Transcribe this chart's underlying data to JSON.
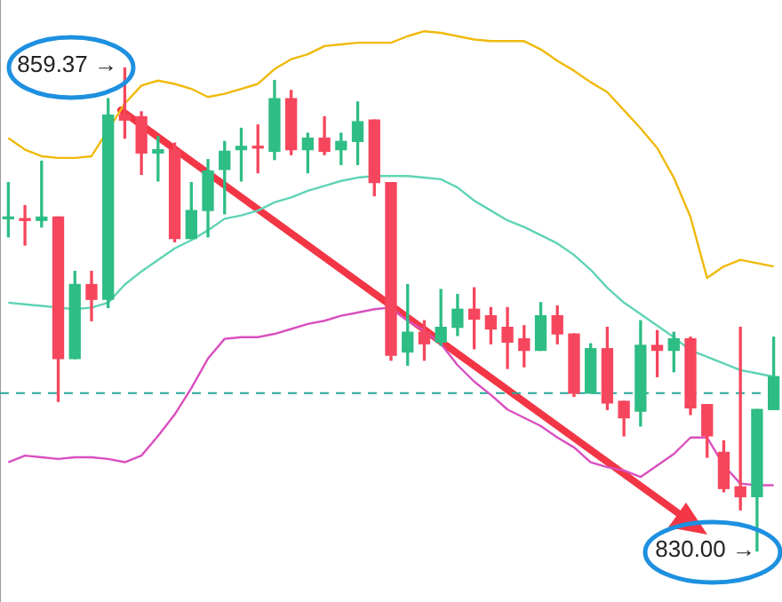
{
  "chart_data": {
    "type": "candlestick",
    "categories": [
      null,
      null,
      null,
      null,
      null,
      null,
      null,
      null,
      null,
      null,
      null,
      null,
      null,
      null,
      null,
      null,
      null,
      null,
      null,
      null,
      null,
      null,
      null,
      null,
      null,
      null,
      null,
      null,
      null,
      null,
      null,
      null,
      null,
      null,
      null,
      null,
      null,
      null,
      null,
      null,
      null,
      null,
      null,
      null,
      null,
      null,
      null
    ],
    "ohlc": [
      [
        850.2,
        852.4,
        849.1,
        850.3
      ],
      [
        850.2,
        851.0,
        848.6,
        850.1
      ],
      [
        850.1,
        853.7,
        849.7,
        850.3
      ],
      [
        850.3,
        850.3,
        839.1,
        841.7
      ],
      [
        841.7,
        847.0,
        841.7,
        846.2
      ],
      [
        846.2,
        847.0,
        844.0,
        845.3
      ],
      [
        845.3,
        857.5,
        844.8,
        856.5
      ],
      [
        856.5,
        859.37,
        855.1,
        856.2
      ],
      [
        856.4,
        856.7,
        852.9,
        854.2
      ],
      [
        854.2,
        855.2,
        852.5,
        854.4
      ],
      [
        854.4,
        854.8,
        848.8,
        849.0
      ],
      [
        849.0,
        852.4,
        849.0,
        850.7
      ],
      [
        850.7,
        853.8,
        849.1,
        853.1
      ],
      [
        853.2,
        854.9,
        850.5,
        854.3
      ],
      [
        854.4,
        855.7,
        852.5,
        854.6
      ],
      [
        854.6,
        855.9,
        853.0,
        854.5
      ],
      [
        854.3,
        858.6,
        853.8,
        857.5
      ],
      [
        857.5,
        858.0,
        854.1,
        854.4
      ],
      [
        854.4,
        855.4,
        853.0,
        855.1
      ],
      [
        855.1,
        856.4,
        854.1,
        854.3
      ],
      [
        854.4,
        855.4,
        853.5,
        854.9
      ],
      [
        854.9,
        857.3,
        853.5,
        856.1
      ],
      [
        856.2,
        856.2,
        851.6,
        852.4
      ],
      [
        852.4,
        852.4,
        841.6,
        841.9
      ],
      [
        842.1,
        846.2,
        841.3,
        843.3
      ],
      [
        843.3,
        844.0,
        841.6,
        842.6
      ],
      [
        842.7,
        845.9,
        842.5,
        843.6
      ],
      [
        843.6,
        845.6,
        843.1,
        844.7
      ],
      [
        844.7,
        846.0,
        842.3,
        844.1
      ],
      [
        844.3,
        844.8,
        842.6,
        843.5
      ],
      [
        843.6,
        844.8,
        841.1,
        842.7
      ],
      [
        842.9,
        843.7,
        841.2,
        842.2
      ],
      [
        842.2,
        845.1,
        842.2,
        844.3
      ],
      [
        844.3,
        844.9,
        842.6,
        843.2
      ],
      [
        843.2,
        843.2,
        839.4,
        839.6
      ],
      [
        839.6,
        842.6,
        839.6,
        842.3
      ],
      [
        842.3,
        843.6,
        838.6,
        839.0
      ],
      [
        839.1,
        839.1,
        837.0,
        838.1
      ],
      [
        838.5,
        844.0,
        837.6,
        842.5
      ],
      [
        842.5,
        843.4,
        840.6,
        842.2
      ],
      [
        842.2,
        843.3,
        840.9,
        842.9
      ],
      [
        842.9,
        843.0,
        838.3,
        838.7
      ],
      [
        838.9,
        838.9,
        835.7,
        837.0
      ],
      [
        836.0,
        836.7,
        833.6,
        833.8
      ],
      [
        833.9,
        843.6,
        832.5,
        833.3
      ],
      [
        833.3,
        838.6,
        830.0,
        838.6
      ],
      [
        838.6,
        843.0,
        838.6,
        840.6
      ]
    ],
    "colors": [
      "#2ebd85",
      "#f6465d",
      "#2ebd85",
      "#f6465d",
      "#2ebd85",
      "#f6465d",
      "#2ebd85",
      "#f6465d",
      "#f6465d",
      "#2ebd85",
      "#f6465d",
      "#2ebd85",
      "#2ebd85",
      "#2ebd85",
      "#2ebd85",
      "#f6465d",
      "#2ebd85",
      "#f6465d",
      "#2ebd85",
      "#f6465d",
      "#2ebd85",
      "#2ebd85",
      "#f6465d",
      "#f6465d",
      "#2ebd85",
      "#f6465d",
      "#2ebd85",
      "#2ebd85",
      "#f6465d",
      "#f6465d",
      "#f6465d",
      "#f6465d",
      "#2ebd85",
      "#f6465d",
      "#f6465d",
      "#2ebd85",
      "#f6465d",
      "#f6465d",
      "#2ebd85",
      "#f6465d",
      "#2ebd85",
      "#f6465d",
      "#f6465d",
      "#f6465d",
      "#f6465d",
      "#2ebd85",
      "#2ebd85"
    ],
    "series": [
      {
        "type": "line",
        "color": "#f0b90b",
        "values": [
          855.1,
          854.4,
          854.0,
          853.9,
          853.9,
          854.0,
          null,
          857.2,
          858.3,
          858.6,
          858.4,
          858.1,
          857.6,
          857.8,
          858.1,
          858.4,
          859.3,
          859.9,
          860.2,
          860.7,
          860.8,
          860.9,
          860.9,
          860.9,
          861.3,
          861.6,
          861.5,
          861.3,
          861.1,
          861.0,
          861.0,
          861.0,
          860.5,
          859.8,
          859.2,
          858.5,
          857.9,
          856.8,
          855.7,
          854.5,
          852.7,
          850.3,
          846.6,
          847.3,
          847.7,
          847.5,
          847.3
        ]
      },
      {
        "type": "line",
        "color": "#5fd3b5",
        "values": [
          845.1,
          845.0,
          844.9,
          844.8,
          844.7,
          844.8,
          845.1,
          846.2,
          847.0,
          847.7,
          848.4,
          848.9,
          849.5,
          850.2,
          850.4,
          850.7,
          851.2,
          851.5,
          851.9,
          852.2,
          852.5,
          852.7,
          852.8,
          852.8,
          852.8,
          852.7,
          852.6,
          852.1,
          851.3,
          850.7,
          850.1,
          849.7,
          849.2,
          848.7,
          848.0,
          847.1,
          846.0,
          845.1,
          844.4,
          843.7,
          843.0,
          842.2,
          841.8,
          841.4,
          841.0,
          840.8,
          840.6
        ]
      },
      {
        "type": "line",
        "color": "#d94fbf",
        "values": [
          835.4,
          835.8,
          835.7,
          835.6,
          835.7,
          835.7,
          835.6,
          835.4,
          835.8,
          837.0,
          838.3,
          839.9,
          841.7,
          842.9,
          843.0,
          843.0,
          843.2,
          843.5,
          843.8,
          844.0,
          844.3,
          844.5,
          844.7,
          844.8,
          844.0,
          843.4,
          842.6,
          841.3,
          840.3,
          839.5,
          838.6,
          838.1,
          837.6,
          836.9,
          836.3,
          835.4,
          835.1,
          834.9,
          834.5,
          835.2,
          835.9,
          836.9,
          836.9,
          835.2,
          834.1,
          834.0,
          834.0
        ]
      }
    ],
    "ylim": [
      826.9,
      863.5
    ],
    "tick_labels": false,
    "legend": false,
    "ref_lines": [
      {
        "axis": "y",
        "value": 839.6,
        "color": "#26a69a",
        "line_style": "dashed"
      }
    ],
    "annotations": [
      "859.37 →",
      "830.00 →"
    ]
  }
}
